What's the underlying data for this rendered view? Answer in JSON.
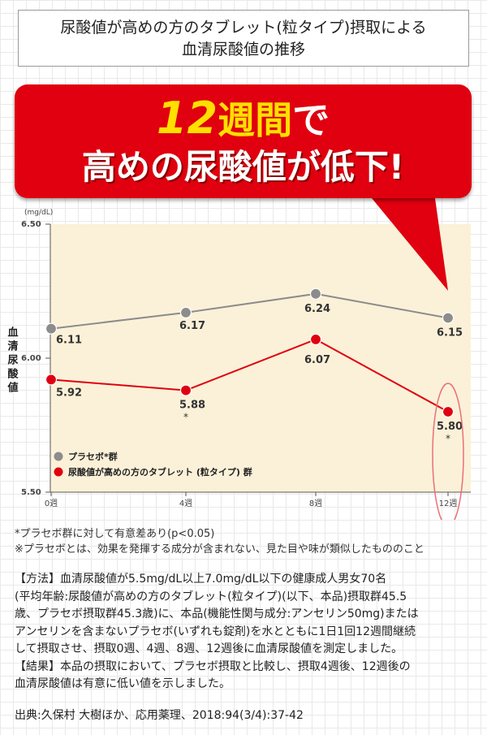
{
  "title": {
    "line1": "尿酸値が高めの方のタブレット(粒タイプ)摂取による",
    "line2": "血清尿酸値の推移"
  },
  "banner": {
    "number": "12",
    "line1_rest": "週間",
    "line1_suffix": "で",
    "line2": "高めの尿酸値が低下!"
  },
  "chart_data": {
    "type": "line",
    "unit": "(mg/dL)",
    "ylabel": "血清尿酸値",
    "ylim": [
      5.5,
      6.5
    ],
    "yticks": [
      "6.50",
      "6.00",
      "5.50"
    ],
    "categories": [
      "0週",
      "4週",
      "8週",
      "12週"
    ],
    "series": [
      {
        "name": "プラセボ*群",
        "color": "#8c8c8c",
        "values": [
          6.11,
          6.17,
          6.24,
          6.15
        ],
        "labels": [
          "6.11",
          "6.17",
          "6.24",
          "6.15"
        ]
      },
      {
        "name": "尿酸値が高めの方のタブレット (粒タイプ) 群",
        "color": "#e0000f",
        "values": [
          5.92,
          5.88,
          6.07,
          5.8
        ],
        "labels": [
          "5.92",
          "5.88",
          "6.07",
          "5.80"
        ],
        "marks": [
          "",
          "*",
          "",
          "*"
        ]
      }
    ],
    "grid": false,
    "legend": "bottom-left"
  },
  "notes": {
    "n1": "*プラセボ群に対して有意差あり(p<0.05)",
    "n2": "※プラセボとは、効果を発揮する成分が含まれない、見た目や味が類似したもののこと"
  },
  "method": {
    "l1": "【方法】血清尿酸値が5.5mg/dL以上7.0mg/dL以下の健康成人男女70名",
    "l2": "(平均年齢:尿酸値が高めの方のタブレット(粒タイプ)(以下、本品)摂取群45.5",
    "l3": "歳、プラセボ摂取群45.3歳)に、本品(機能性関与成分:アンセリン50mg)または",
    "l4": "アンセリンを含まないプラセボ(いずれも錠剤)を水とともに1日1回12週間継続",
    "l5": "して摂取させ、摂取0週、4週、8週、12週後に血清尿酸値を測定しました。",
    "l6": "【結果】本品の摂取において、プラセボ摂取と比較し、摂取4週後、12週後の",
    "l7": "血清尿酸値は有意に低い値を示しました。"
  },
  "source": "出典:久保村 大樹ほか、応用薬理、2018:94(3/4):37-42"
}
